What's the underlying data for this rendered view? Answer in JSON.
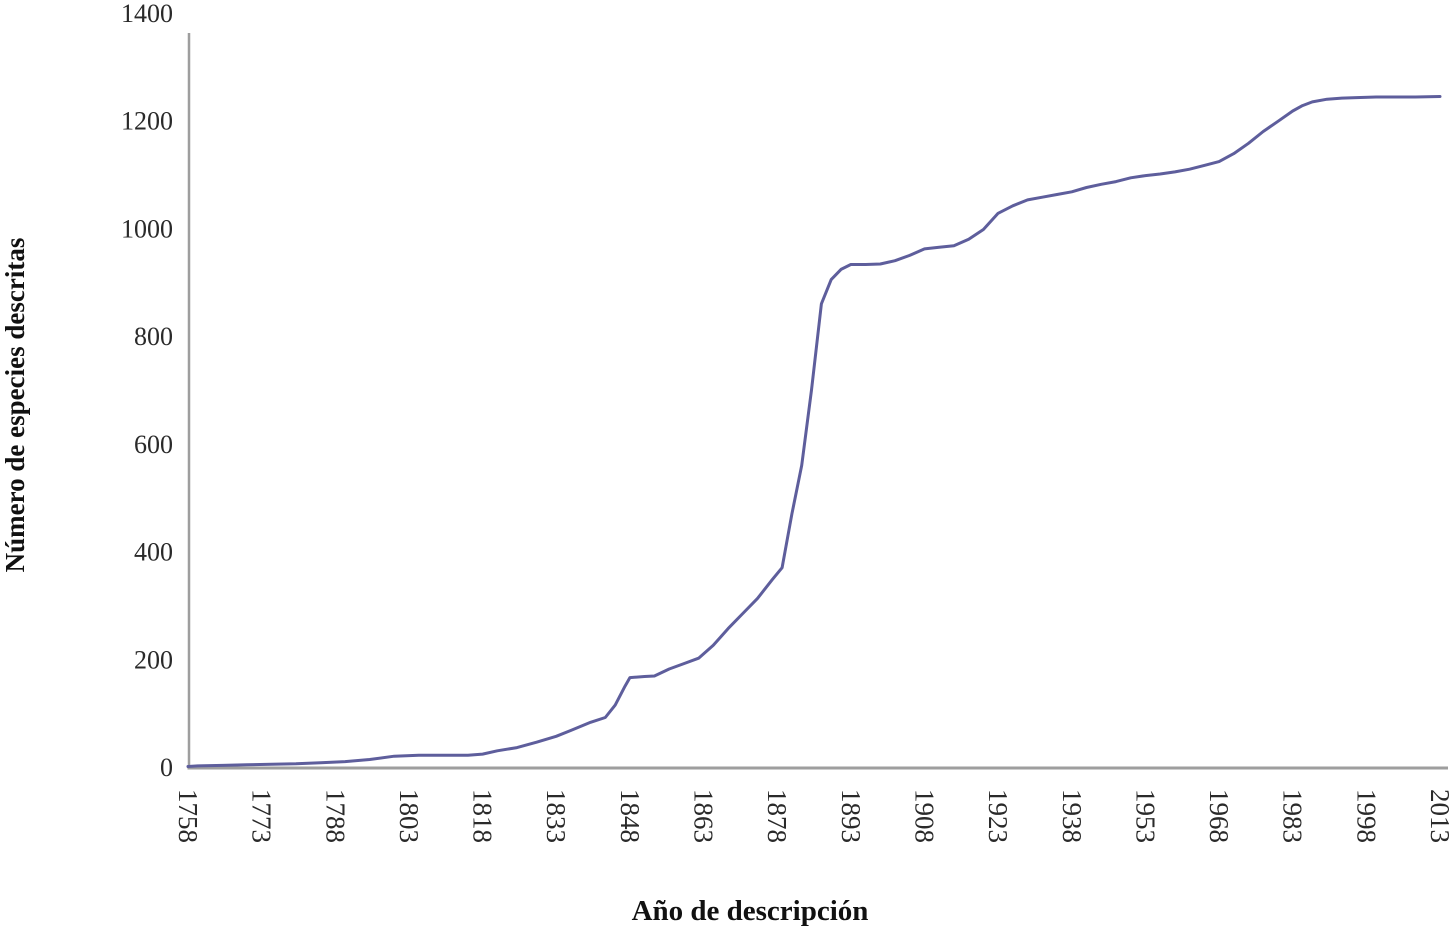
{
  "chart_data": {
    "type": "line",
    "title": "",
    "xlabel": "Año de descripción",
    "ylabel": "Número de especies descritas",
    "xlim": [
      1758,
      2013
    ],
    "ylim": [
      0,
      1400
    ],
    "x_ticks": [
      1758,
      1773,
      1788,
      1803,
      1818,
      1833,
      1848,
      1863,
      1878,
      1893,
      1908,
      1923,
      1938,
      1953,
      1968,
      1983,
      1998,
      2013
    ],
    "y_ticks": [
      0,
      200,
      400,
      600,
      800,
      1000,
      1200,
      1400
    ],
    "grid": false,
    "legend": "none",
    "line_color": "#5e5e9c",
    "axis_color": "#9e9e9e",
    "series": [
      {
        "name": "",
        "points": [
          [
            1758,
            1
          ],
          [
            1760,
            2
          ],
          [
            1765,
            3
          ],
          [
            1770,
            4
          ],
          [
            1775,
            5
          ],
          [
            1780,
            6
          ],
          [
            1785,
            8
          ],
          [
            1790,
            10
          ],
          [
            1795,
            14
          ],
          [
            1800,
            20
          ],
          [
            1805,
            22
          ],
          [
            1810,
            22
          ],
          [
            1815,
            22
          ],
          [
            1818,
            24
          ],
          [
            1821,
            30
          ],
          [
            1825,
            36
          ],
          [
            1829,
            46
          ],
          [
            1833,
            57
          ],
          [
            1836,
            68
          ],
          [
            1840,
            83
          ],
          [
            1843,
            92
          ],
          [
            1845,
            115
          ],
          [
            1847,
            150
          ],
          [
            1848,
            166
          ],
          [
            1851,
            168
          ],
          [
            1853,
            169
          ],
          [
            1856,
            182
          ],
          [
            1859,
            192
          ],
          [
            1862,
            202
          ],
          [
            1865,
            226
          ],
          [
            1868,
            257
          ],
          [
            1871,
            285
          ],
          [
            1874,
            313
          ],
          [
            1877,
            348
          ],
          [
            1879,
            370
          ],
          [
            1881,
            470
          ],
          [
            1883,
            560
          ],
          [
            1885,
            700
          ],
          [
            1887,
            860
          ],
          [
            1889,
            905
          ],
          [
            1891,
            924
          ],
          [
            1893,
            933
          ],
          [
            1896,
            933
          ],
          [
            1899,
            934
          ],
          [
            1902,
            940
          ],
          [
            1905,
            950
          ],
          [
            1908,
            962
          ],
          [
            1911,
            965
          ],
          [
            1914,
            968
          ],
          [
            1917,
            980
          ],
          [
            1920,
            998
          ],
          [
            1923,
            1028
          ],
          [
            1926,
            1042
          ],
          [
            1929,
            1053
          ],
          [
            1932,
            1058
          ],
          [
            1935,
            1063
          ],
          [
            1938,
            1068
          ],
          [
            1941,
            1076
          ],
          [
            1944,
            1082
          ],
          [
            1947,
            1087
          ],
          [
            1950,
            1094
          ],
          [
            1953,
            1098
          ],
          [
            1956,
            1101
          ],
          [
            1959,
            1105
          ],
          [
            1962,
            1110
          ],
          [
            1965,
            1117
          ],
          [
            1968,
            1124
          ],
          [
            1971,
            1139
          ],
          [
            1974,
            1158
          ],
          [
            1977,
            1180
          ],
          [
            1980,
            1199
          ],
          [
            1983,
            1218
          ],
          [
            1985,
            1228
          ],
          [
            1987,
            1235
          ],
          [
            1990,
            1240
          ],
          [
            1993,
            1242
          ],
          [
            1996,
            1243
          ],
          [
            2000,
            1244
          ],
          [
            2004,
            1244
          ],
          [
            2008,
            1244
          ],
          [
            2013,
            1245
          ]
        ]
      }
    ]
  }
}
